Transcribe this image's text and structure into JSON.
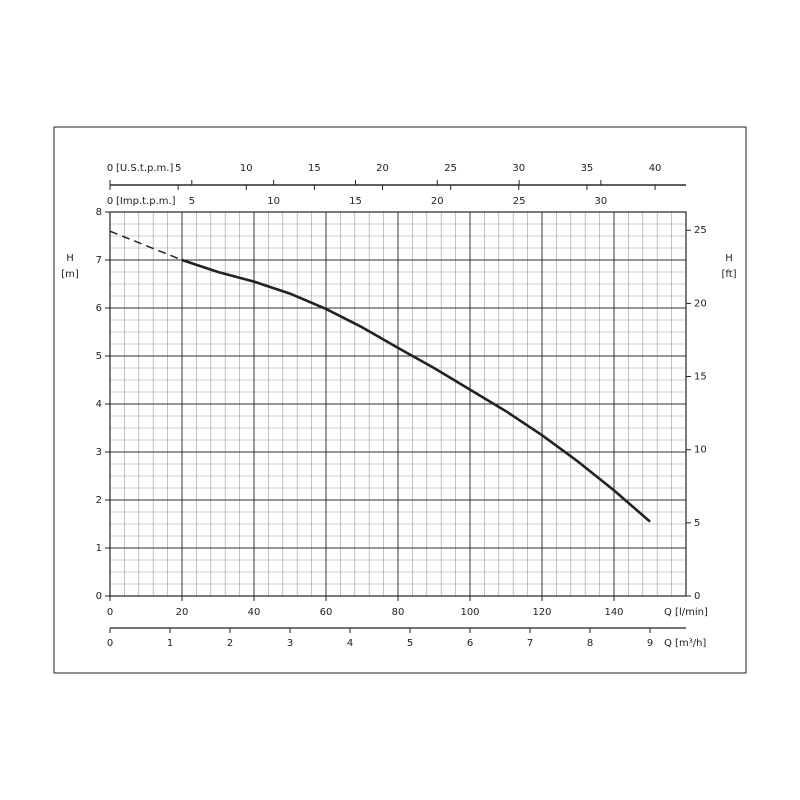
{
  "chart_data": {
    "type": "line",
    "x_label": "Q [l/min]",
    "y_label": "H",
    "y_unit": "[m]",
    "y2_label": "H",
    "y2_unit": "[ft]",
    "x": [
      0,
      10,
      20,
      30,
      40,
      50,
      60,
      70,
      80,
      90,
      100,
      110,
      120,
      130,
      140,
      150
    ],
    "series": [
      {
        "style": "dashed",
        "color": "#222222",
        "values": [
          7.6,
          7.3,
          7.0,
          null,
          null,
          null,
          null,
          null,
          null,
          null,
          null,
          null,
          null,
          null,
          null,
          null
        ]
      },
      {
        "style": "solid",
        "color": "#222222",
        "values": [
          null,
          null,
          7.0,
          6.75,
          6.55,
          6.3,
          5.98,
          5.6,
          5.17,
          4.75,
          4.3,
          3.85,
          3.35,
          2.8,
          2.2,
          1.55
        ]
      }
    ],
    "xlim": [
      0,
      160
    ],
    "xticks": [
      0,
      20,
      40,
      60,
      80,
      100,
      120,
      140
    ],
    "ylim": [
      0,
      8
    ],
    "yticks": [
      0,
      1,
      2,
      3,
      4,
      5,
      6,
      7,
      8
    ],
    "y2lim": [
      0,
      26.247
    ],
    "y2ticks": [
      0,
      5,
      10,
      15,
      20,
      25
    ],
    "grid": true,
    "us_gpm_axis": {
      "label": "[U.S.t.p.m.]",
      "lim": [
        0,
        42.27
      ],
      "ticks": [
        0,
        5,
        10,
        15,
        20,
        25,
        30,
        35,
        40
      ]
    },
    "imp_gpm_axis": {
      "label": "[Imp.t.p.m.]",
      "lim": [
        0,
        35.2
      ],
      "ticks": [
        0,
        5,
        10,
        15,
        20,
        25,
        30
      ]
    },
    "m3h_axis": {
      "label": "Q [m³/h]",
      "lim": [
        0,
        9.6
      ],
      "ticks": [
        0,
        1,
        2,
        3,
        4,
        5,
        6,
        7,
        8,
        9
      ]
    }
  }
}
